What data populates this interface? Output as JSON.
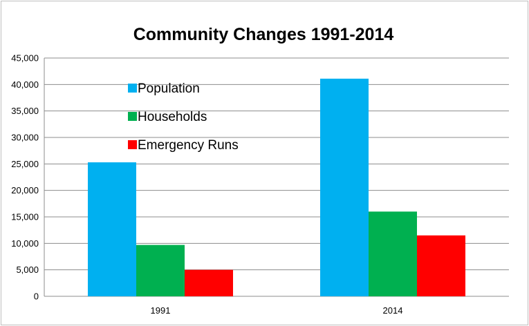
{
  "chart_data": {
    "type": "bar",
    "title": "Community Changes 1991-2014",
    "xlabel": "",
    "ylabel": "",
    "categories": [
      "1991",
      "2014"
    ],
    "series": [
      {
        "name": "Population",
        "values": [
          25300,
          41100
        ],
        "color": "#00b0f0"
      },
      {
        "name": "Households",
        "values": [
          9700,
          16000
        ],
        "color": "#00b050"
      },
      {
        "name": "Emergency Runs",
        "values": [
          5000,
          11500
        ],
        "color": "#ff0000"
      }
    ],
    "ylim": [
      0,
      45000
    ],
    "yticks": [
      "0",
      "5,000",
      "10,000",
      "15,000",
      "20,000",
      "25,000",
      "30,000",
      "35,000",
      "40,000",
      "45,000"
    ],
    "ytick_values": [
      0,
      5000,
      10000,
      15000,
      20000,
      25000,
      30000,
      35000,
      40000,
      45000
    ],
    "grid": true,
    "legend": "top-left inside"
  }
}
